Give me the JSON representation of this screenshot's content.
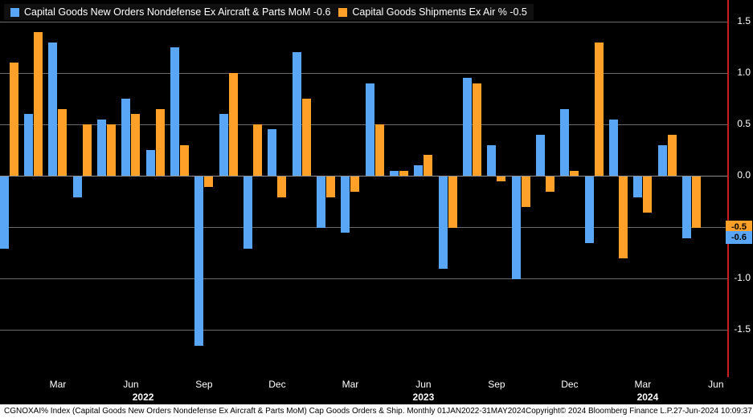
{
  "legend": {
    "series1_label": "Capital Goods New Orders Nondefense Ex Aircraft & Parts MoM -0.6",
    "series2_label": "Capital Goods Shipments Ex Air % -0.5"
  },
  "colors": {
    "series1": "#58a6f5",
    "series2": "#ffa028",
    "grid": "#6a6a6a",
    "zero_line": "#909090",
    "axis_line": "#c41e1e",
    "background": "#000000",
    "status_bg": "#ffffff"
  },
  "axis": {
    "last_value_badges": [
      {
        "text": "-0.5",
        "value": -0.5,
        "series": "series2"
      },
      {
        "text": "-0.6",
        "value": -0.6,
        "series": "series1"
      }
    ]
  },
  "status_bar": {
    "left": "CGNOXAI% Index (Capital Goods New Orders Nondefense Ex Aircraft & Parts MoM) Cap Goods Orders & Ship.  Monthly 01JAN2022-31MAY2024",
    "copyright": "Copyright© 2024 Bloomberg Finance L.P.",
    "timestamp": "27-Jun-2024 10:09:37"
  },
  "chart_data": {
    "type": "bar",
    "title": "",
    "xlabel": "",
    "ylabel": "",
    "ylim": [
      -1.95,
      1.7
    ],
    "grid": "horizontal",
    "legend_position": "top-left",
    "x": [
      "Jan 2022",
      "Feb 2022",
      "Mar 2022",
      "Apr 2022",
      "May 2022",
      "Jun 2022",
      "Jul 2022",
      "Aug 2022",
      "Sep 2022",
      "Oct 2022",
      "Nov 2022",
      "Dec 2022",
      "Jan 2023",
      "Feb 2023",
      "Mar 2023",
      "Apr 2023",
      "May 2023",
      "Jun 2023",
      "Jul 2023",
      "Aug 2023",
      "Sep 2023",
      "Oct 2023",
      "Nov 2023",
      "Dec 2023",
      "Jan 2024",
      "Feb 2024",
      "Mar 2024",
      "Apr 2024",
      "May 2024"
    ],
    "series": [
      {
        "name": "Capital Goods New Orders Nondefense Ex Aircraft & Parts MoM",
        "color_key": "series1",
        "last_value": -0.6,
        "values": [
          -0.7,
          0.6,
          1.3,
          -0.2,
          0.55,
          0.75,
          0.25,
          1.25,
          -1.65,
          0.6,
          -0.7,
          0.45,
          1.2,
          -0.5,
          -0.55,
          0.9,
          0.05,
          0.1,
          -0.9,
          0.95,
          0.3,
          -1.0,
          0.4,
          0.65,
          -0.65,
          0.55,
          -0.2,
          0.3,
          -0.6
        ]
      },
      {
        "name": "Capital Goods Shipments Ex Air %",
        "color_key": "series2",
        "last_value": -0.5,
        "values": [
          1.1,
          1.4,
          0.65,
          0.5,
          0.5,
          0.6,
          0.65,
          0.3,
          -0.1,
          1.0,
          0.5,
          -0.2,
          0.75,
          -0.2,
          -0.15,
          0.5,
          0.05,
          0.2,
          -0.5,
          0.9,
          -0.05,
          -0.3,
          -0.15,
          0.05,
          1.3,
          -0.8,
          -0.35,
          0.4,
          -0.5
        ]
      }
    ],
    "y_ticks": [
      1.5,
      1.0,
      0.5,
      0.0,
      -0.5,
      -1.0,
      -1.5
    ],
    "x_ticks": [
      {
        "pos": 2,
        "label": "Mar"
      },
      {
        "pos": 5,
        "label": "Jun"
      },
      {
        "pos": 8,
        "label": "Sep"
      },
      {
        "pos": 11,
        "label": "Dec"
      },
      {
        "pos": 14,
        "label": "Mar"
      },
      {
        "pos": 17,
        "label": "Jun"
      },
      {
        "pos": 20,
        "label": "Sep"
      },
      {
        "pos": 23,
        "label": "Dec"
      },
      {
        "pos": 26,
        "label": "Mar"
      },
      {
        "pos": 29,
        "label": "Jun"
      }
    ],
    "year_labels": [
      {
        "pos": 5.5,
        "label": "2022"
      },
      {
        "pos": 17.0,
        "label": "2023"
      },
      {
        "pos": 26.2,
        "label": "2024"
      }
    ]
  }
}
